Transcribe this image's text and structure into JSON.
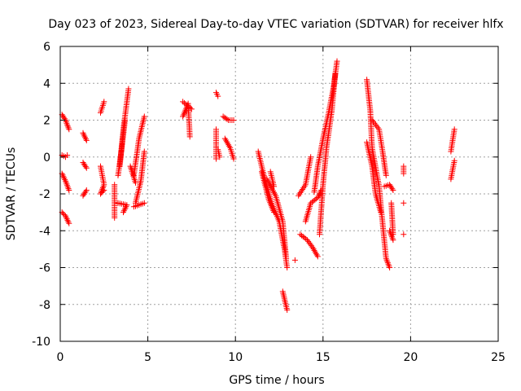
{
  "chart_data": {
    "type": "scatter",
    "title": "Day 023 of 2023, Sidereal Day-to-day VTEC variation (SDTVAR) for receiver hlfx",
    "xlabel": "GPS time / hours",
    "ylabel": "SDTVAR / TECUs",
    "xlim": [
      0,
      25
    ],
    "ylim": [
      -10,
      6
    ],
    "xticks": [
      0,
      5,
      10,
      15,
      20,
      25
    ],
    "yticks": [
      -10,
      -8,
      -6,
      -4,
      -2,
      0,
      2,
      4,
      6
    ],
    "grid": true,
    "marker": "+",
    "color": "#ff0000",
    "tracks": [
      [
        [
          0.1,
          2.3
        ],
        [
          0.3,
          2.0
        ],
        [
          0.5,
          1.5
        ]
      ],
      [
        [
          0.1,
          0.1
        ],
        [
          0.3,
          0.0
        ],
        [
          0.4,
          0.1
        ]
      ],
      [
        [
          0.1,
          -0.9
        ],
        [
          0.3,
          -1.3
        ],
        [
          0.5,
          -1.8
        ]
      ],
      [
        [
          0.1,
          -3.0
        ],
        [
          0.3,
          -3.2
        ],
        [
          0.5,
          -3.6
        ]
      ],
      [
        [
          1.3,
          1.3
        ],
        [
          1.5,
          0.9
        ]
      ],
      [
        [
          1.3,
          -0.3
        ],
        [
          1.5,
          -0.6
        ]
      ],
      [
        [
          1.3,
          -2.1
        ],
        [
          1.5,
          -1.8
        ]
      ],
      [
        [
          2.3,
          2.4
        ],
        [
          2.5,
          3.0
        ]
      ],
      [
        [
          2.3,
          -0.5
        ],
        [
          2.5,
          -1.5
        ],
        [
          2.3,
          -2.0
        ],
        [
          2.5,
          -1.8
        ]
      ],
      [
        [
          3.1,
          -1.5
        ],
        [
          3.1,
          -3.3
        ]
      ],
      [
        [
          3.4,
          -0.5
        ],
        [
          3.6,
          1.5
        ],
        [
          3.9,
          3.7
        ]
      ],
      [
        [
          3.3,
          -1.0
        ],
        [
          3.5,
          0.4
        ],
        [
          3.7,
          2.0
        ]
      ],
      [
        [
          3.3,
          -2.5
        ],
        [
          3.8,
          -2.6
        ],
        [
          3.6,
          -3.0
        ]
      ],
      [
        [
          4.0,
          -0.5
        ],
        [
          4.3,
          -1.4
        ]
      ],
      [
        [
          4.2,
          -1.0
        ],
        [
          4.5,
          1.0
        ],
        [
          4.8,
          2.2
        ]
      ],
      [
        [
          4.3,
          -2.5
        ],
        [
          4.6,
          -1.3
        ],
        [
          4.8,
          0.3
        ]
      ],
      [
        [
          4.2,
          -2.7
        ],
        [
          4.8,
          -2.5
        ]
      ],
      [
        [
          7.0,
          2.2
        ],
        [
          7.3,
          2.9
        ],
        [
          7.4,
          1.1
        ]
      ],
      [
        [
          7.0,
          3.0
        ],
        [
          7.5,
          2.6
        ]
      ],
      [
        [
          8.9,
          3.5
        ],
        [
          9.0,
          3.3
        ]
      ],
      [
        [
          8.9,
          1.5
        ],
        [
          8.9,
          -0.1
        ]
      ],
      [
        [
          9.0,
          0.4
        ],
        [
          9.1,
          0.0
        ]
      ],
      [
        [
          9.3,
          2.2
        ],
        [
          9.6,
          2.0
        ],
        [
          9.9,
          2.0
        ]
      ],
      [
        [
          9.4,
          1.0
        ],
        [
          9.7,
          0.5
        ],
        [
          9.9,
          -0.1
        ]
      ],
      [
        [
          11.3,
          0.3
        ],
        [
          11.7,
          -1.3
        ],
        [
          12.1,
          -2.6
        ],
        [
          12.5,
          -3.5
        ],
        [
          12.8,
          -5.0
        ],
        [
          12.95,
          -6.0
        ]
      ],
      [
        [
          11.5,
          -0.8
        ],
        [
          11.9,
          -2.3
        ],
        [
          12.2,
          -3.0
        ]
      ],
      [
        [
          11.8,
          -1.2
        ],
        [
          12.3,
          -2.1
        ],
        [
          12.7,
          -3.5
        ],
        [
          12.9,
          -5.5
        ]
      ],
      [
        [
          12.0,
          -0.8
        ],
        [
          12.2,
          -1.6
        ]
      ],
      [
        [
          12.7,
          -7.3
        ],
        [
          12.95,
          -8.3
        ]
      ],
      [
        [
          13.4,
          -5.6
        ]
      ],
      [
        [
          13.6,
          -2.1
        ],
        [
          14.0,
          -1.5
        ],
        [
          14.3,
          0.0
        ]
      ],
      [
        [
          13.7,
          -4.2
        ],
        [
          14.1,
          -4.5
        ],
        [
          14.4,
          -4.9
        ],
        [
          14.7,
          -5.4
        ]
      ],
      [
        [
          14.0,
          -3.5
        ],
        [
          14.3,
          -2.5
        ],
        [
          14.7,
          -2.2
        ],
        [
          14.9,
          -1.8
        ]
      ],
      [
        [
          14.5,
          -1.9
        ],
        [
          14.7,
          -0.5
        ],
        [
          15.0,
          1.0
        ],
        [
          15.3,
          2.3
        ],
        [
          15.6,
          3.8
        ],
        [
          15.8,
          5.2
        ]
      ],
      [
        [
          14.8,
          -4.2
        ],
        [
          15.0,
          -1.5
        ],
        [
          15.2,
          0.5
        ],
        [
          15.5,
          2.5
        ],
        [
          15.7,
          4.5
        ]
      ],
      [
        [
          17.5,
          4.2
        ],
        [
          17.7,
          2.5
        ],
        [
          17.8,
          0.5
        ],
        [
          18.2,
          -1.6
        ],
        [
          18.4,
          -3.6
        ],
        [
          18.6,
          -5.5
        ],
        [
          18.8,
          -6.0
        ]
      ],
      [
        [
          17.8,
          2.0
        ],
        [
          18.2,
          1.5
        ],
        [
          18.4,
          0.3
        ],
        [
          18.6,
          -1.0
        ]
      ],
      [
        [
          17.5,
          0.8
        ],
        [
          17.8,
          -0.5
        ],
        [
          18.0,
          -2.0
        ],
        [
          18.3,
          -3.0
        ]
      ],
      [
        [
          18.5,
          -1.6
        ],
        [
          18.8,
          -1.5
        ],
        [
          19.0,
          -1.8
        ]
      ],
      [
        [
          18.8,
          -4.0
        ],
        [
          19.0,
          -4.5
        ]
      ],
      [
        [
          18.9,
          -2.5
        ],
        [
          19.0,
          -4.2
        ]
      ],
      [
        [
          19.6,
          -0.5
        ],
        [
          19.6,
          -0.9
        ]
      ],
      [
        [
          19.6,
          -2.5
        ]
      ],
      [
        [
          19.6,
          -4.2
        ]
      ],
      [
        [
          22.3,
          0.3
        ],
        [
          22.5,
          1.5
        ]
      ],
      [
        [
          22.3,
          -1.2
        ],
        [
          22.5,
          -0.2
        ]
      ]
    ]
  }
}
